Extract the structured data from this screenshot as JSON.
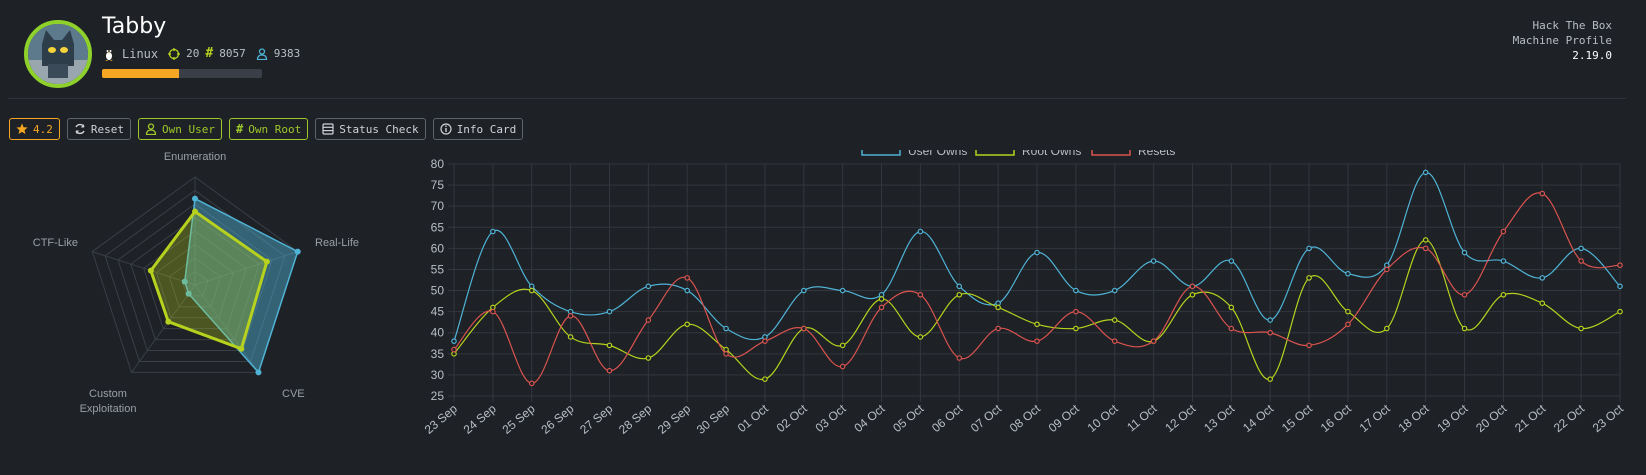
{
  "machine": {
    "name": "Tabby",
    "os": "Linux",
    "points": "20",
    "root_owns_count": "8057",
    "user_owns_count": "9383",
    "progress": 0.48
  },
  "brand": {
    "line1": "Hack The Box",
    "line2": "Machine Profile",
    "version": "2.19.0"
  },
  "toolbar": {
    "rating": "4.2",
    "reset": "Reset",
    "own_user": "Own User",
    "own_root": "Own Root",
    "status_check": "Status Check",
    "info_card": "Info Card"
  },
  "colors": {
    "user": "#4fb3d6",
    "root": "#b7d21e",
    "resets": "#d9534f",
    "accent": "#f5a623",
    "green": "#9fc82a"
  },
  "chart_data": [
    {
      "type": "radar",
      "axes": [
        "Enumeration",
        "Real-Life",
        "CVE",
        "Custom Exploitation",
        "CTF-Like"
      ],
      "series": [
        {
          "values": [
            0.8,
            1.0,
            1.0,
            0.1,
            0.1
          ]
        },
        {
          "values": [
            0.68,
            0.7,
            0.73,
            0.42,
            0.43
          ]
        }
      ],
      "max": 1.0
    },
    {
      "type": "line",
      "x": [
        "23 Sep",
        "24 Sep",
        "25 Sep",
        "26 Sep",
        "27 Sep",
        "28 Sep",
        "29 Sep",
        "30 Sep",
        "01 Oct",
        "02 Oct",
        "03 Oct",
        "04 Oct",
        "05 Oct",
        "06 Oct",
        "07 Oct",
        "08 Oct",
        "09 Oct",
        "10 Oct",
        "11 Oct",
        "12 Oct",
        "13 Oct",
        "14 Oct",
        "15 Oct",
        "16 Oct",
        "17 Oct",
        "18 Oct",
        "19 Oct",
        "20 Oct",
        "21 Oct",
        "22 Oct",
        "23 Oct"
      ],
      "series": [
        {
          "name": "User Owns",
          "values": [
            38,
            64,
            51,
            45,
            45,
            51,
            50,
            41,
            39,
            50,
            50,
            49,
            64,
            51,
            47,
            59,
            50,
            50,
            57,
            51,
            57,
            43,
            60,
            54,
            56,
            78,
            59,
            57,
            53,
            60,
            51
          ]
        },
        {
          "name": "Root Owns",
          "values": [
            35,
            46,
            50,
            39,
            37,
            34,
            42,
            36,
            29,
            41,
            37,
            48,
            39,
            49,
            46,
            42,
            41,
            43,
            38,
            49,
            46,
            29,
            53,
            45,
            41,
            62,
            41,
            49,
            47,
            41,
            45
          ]
        },
        {
          "name": "Resets",
          "values": [
            36,
            45,
            28,
            44,
            31,
            43,
            53,
            35,
            38,
            41,
            32,
            46,
            49,
            34,
            41,
            38,
            45,
            38,
            38,
            51,
            41,
            40,
            37,
            42,
            55,
            60,
            49,
            64,
            73,
            57,
            56
          ]
        }
      ],
      "ylim": [
        25,
        80
      ],
      "yticks": [
        25,
        30,
        35,
        40,
        45,
        50,
        55,
        60,
        65,
        70,
        75,
        80
      ],
      "grid": true,
      "legend": "top"
    }
  ]
}
